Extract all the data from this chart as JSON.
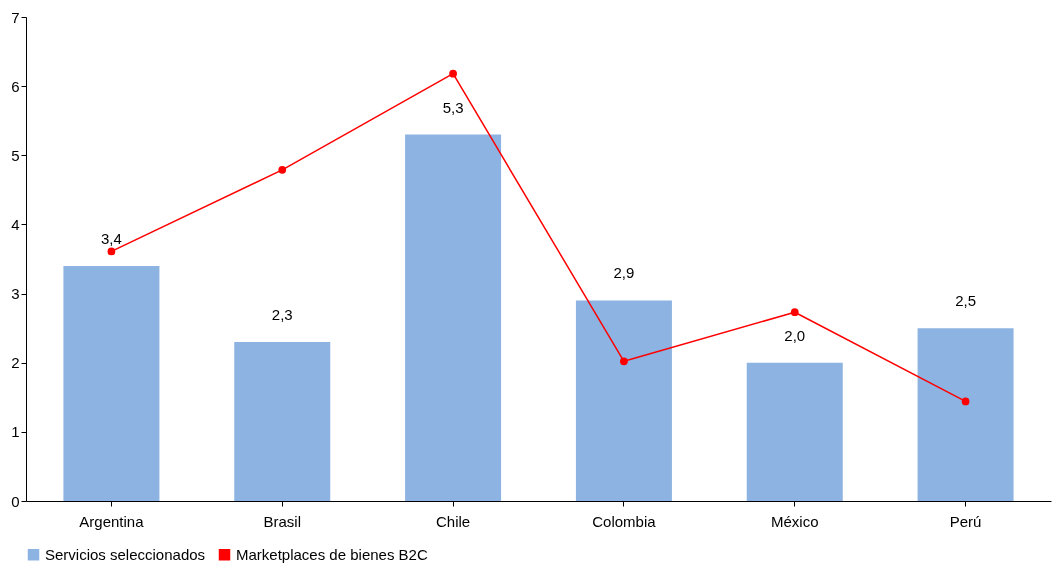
{
  "chart_data": {
    "type": "bar",
    "categories": [
      "Argentina",
      "Brasil",
      "Chile",
      "Colombia",
      "México",
      "Perú"
    ],
    "series": [
      {
        "name": "Servicios seleccionados",
        "color": "#8db3e2",
        "values": [
          3.4,
          2.3,
          5.3,
          2.9,
          2.0,
          2.5
        ],
        "value_labels": [
          "3,4",
          "2,3",
          "5,3",
          "2,9",
          "2,0",
          "2,5"
        ]
      },
      {
        "name": "Marketplaces de bienes  B2C",
        "type": "line",
        "color": "#ff0000",
        "values": [
          3.61,
          4.79,
          6.18,
          2.02,
          2.73,
          1.44
        ],
        "marker": "circle",
        "line_style": "solid"
      }
    ],
    "ylim": [
      0,
      7
    ],
    "yticks": [
      0,
      1,
      2,
      3,
      4,
      5,
      6,
      7
    ],
    "grid": false,
    "legend": "bottom"
  }
}
